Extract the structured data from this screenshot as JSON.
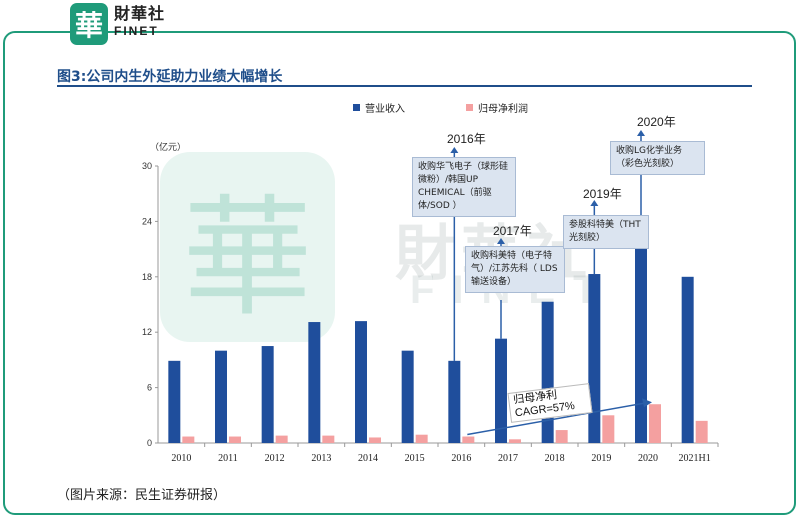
{
  "brand": {
    "logo_glyph": "華",
    "name_cn": "財華社",
    "name_en": "FINET"
  },
  "figure": {
    "title": "图3:公司内生外延助力业绩大幅增长",
    "source": "（图片来源：民生证券研报）"
  },
  "watermark": {
    "cn": "財華社",
    "en": "FINET",
    "seal": "華"
  },
  "colors": {
    "revenue": "#1f4e9c",
    "profit": "#f4a0a0",
    "accent": "#1f9b7a",
    "title": "#1f4e8a"
  },
  "chart_data": {
    "type": "bar",
    "unit_label": "（亿元）",
    "categories": [
      "2010",
      "2011",
      "2012",
      "2013",
      "2014",
      "2015",
      "2016",
      "2017",
      "2018",
      "2019",
      "2020",
      "2021H1"
    ],
    "series": [
      {
        "name": "营业收入",
        "values": [
          8.9,
          10.0,
          10.5,
          13.1,
          13.2,
          10.0,
          8.9,
          11.3,
          15.3,
          18.3,
          22.7,
          18.0
        ]
      },
      {
        "name": "归母净利润",
        "values": [
          0.7,
          0.7,
          0.8,
          0.8,
          0.6,
          0.9,
          0.7,
          0.4,
          1.4,
          3.0,
          4.2,
          2.4
        ]
      }
    ],
    "ylim": [
      0,
      30
    ],
    "yticks": [
      0,
      6,
      12,
      18,
      24,
      30
    ],
    "annotations": [
      {
        "year": "2016年",
        "text": "收购华飞电子（球形硅微粉）/韩国UP CHEMICAL（前驱体/SOD ）"
      },
      {
        "year": "2017年",
        "text": "收购科美特（电子特气）/江苏先科（ LDS输送设备）"
      },
      {
        "year": "2019年",
        "text": "参股科特美（THT光刻胶）"
      },
      {
        "year": "2020年",
        "text": "收购LG化学业务（彩色光刻胶）"
      }
    ],
    "cagr": {
      "line1": "归母净利",
      "line2": "CAGR=57%"
    }
  }
}
